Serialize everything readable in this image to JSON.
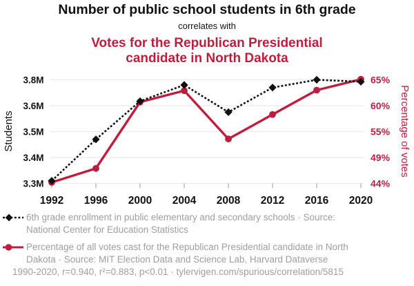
{
  "header": {
    "title": "Number of public school students in 6th grade",
    "subtitle": "correlates with",
    "title2_lines": [
      "Votes for the Republican Presidential",
      "candidate in North Dakota"
    ]
  },
  "chart_data": {
    "type": "line",
    "x": [
      1992,
      1996,
      2000,
      2004,
      2008,
      2012,
      2016,
      2020
    ],
    "x_tick_labels": [
      "1992",
      "1996",
      "2000",
      "2004",
      "2008",
      "2012",
      "2016",
      "2020"
    ],
    "left_axis": {
      "label": "Students",
      "tick_labels": [
        "3.3M",
        "3.4M",
        "3.5M",
        "3.6M",
        "3.8M"
      ],
      "tick_values": [
        3.3,
        3.4,
        3.5,
        3.6,
        3.8
      ]
    },
    "right_axis": {
      "label": "Percentage of votes",
      "tick_labels": [
        "44%",
        "49%",
        "55%",
        "60%",
        "65%"
      ],
      "tick_values": [
        44,
        49,
        55,
        60,
        65
      ]
    },
    "series": [
      {
        "name": "6th grade enrollment in public elementary and secondary schools",
        "axis": "left",
        "color": "#111111",
        "line_style": "dashed",
        "marker": "diamond",
        "values": [
          3.31,
          3.47,
          3.635,
          3.76,
          3.575,
          3.74,
          3.8,
          3.785
        ]
      },
      {
        "name": "Percentage of all votes cast for the Republican Presidential candidate in North Dakota",
        "axis": "right",
        "color": "#be1e3d",
        "line_style": "solid",
        "marker": "circle",
        "values": [
          44.2,
          46.9,
          60.7,
          62.9,
          53.3,
          58.3,
          63.0,
          65.1
        ]
      }
    ],
    "grid": "horizontal",
    "legend_position": "bottom"
  },
  "legend": {
    "items": [
      {
        "marker": "diamond-dashed",
        "color": "#111111",
        "lines": [
          "6th grade enrollment in public elementary and secondary schools · Source:",
          "National Center for Education Statistics"
        ]
      },
      {
        "marker": "circle-solid",
        "color": "#be1e3d",
        "lines": [
          "Percentage of all votes cast for the Republican Presidential candidate in North",
          "Dakota · Source: MIT Election Data and Science Lab, Harvard Dataverse"
        ]
      }
    ]
  },
  "footer": {
    "text": "1990-2020, r=0.940, r²=0.883, p<0.01 · tylervigen.com/spurious/correlation/5815"
  },
  "colors": {
    "accent_red": "#be1e3d",
    "series_black": "#111111",
    "grid_line": "#ebebeb",
    "tick": "#999999",
    "muted_text": "#9e9e9e"
  }
}
